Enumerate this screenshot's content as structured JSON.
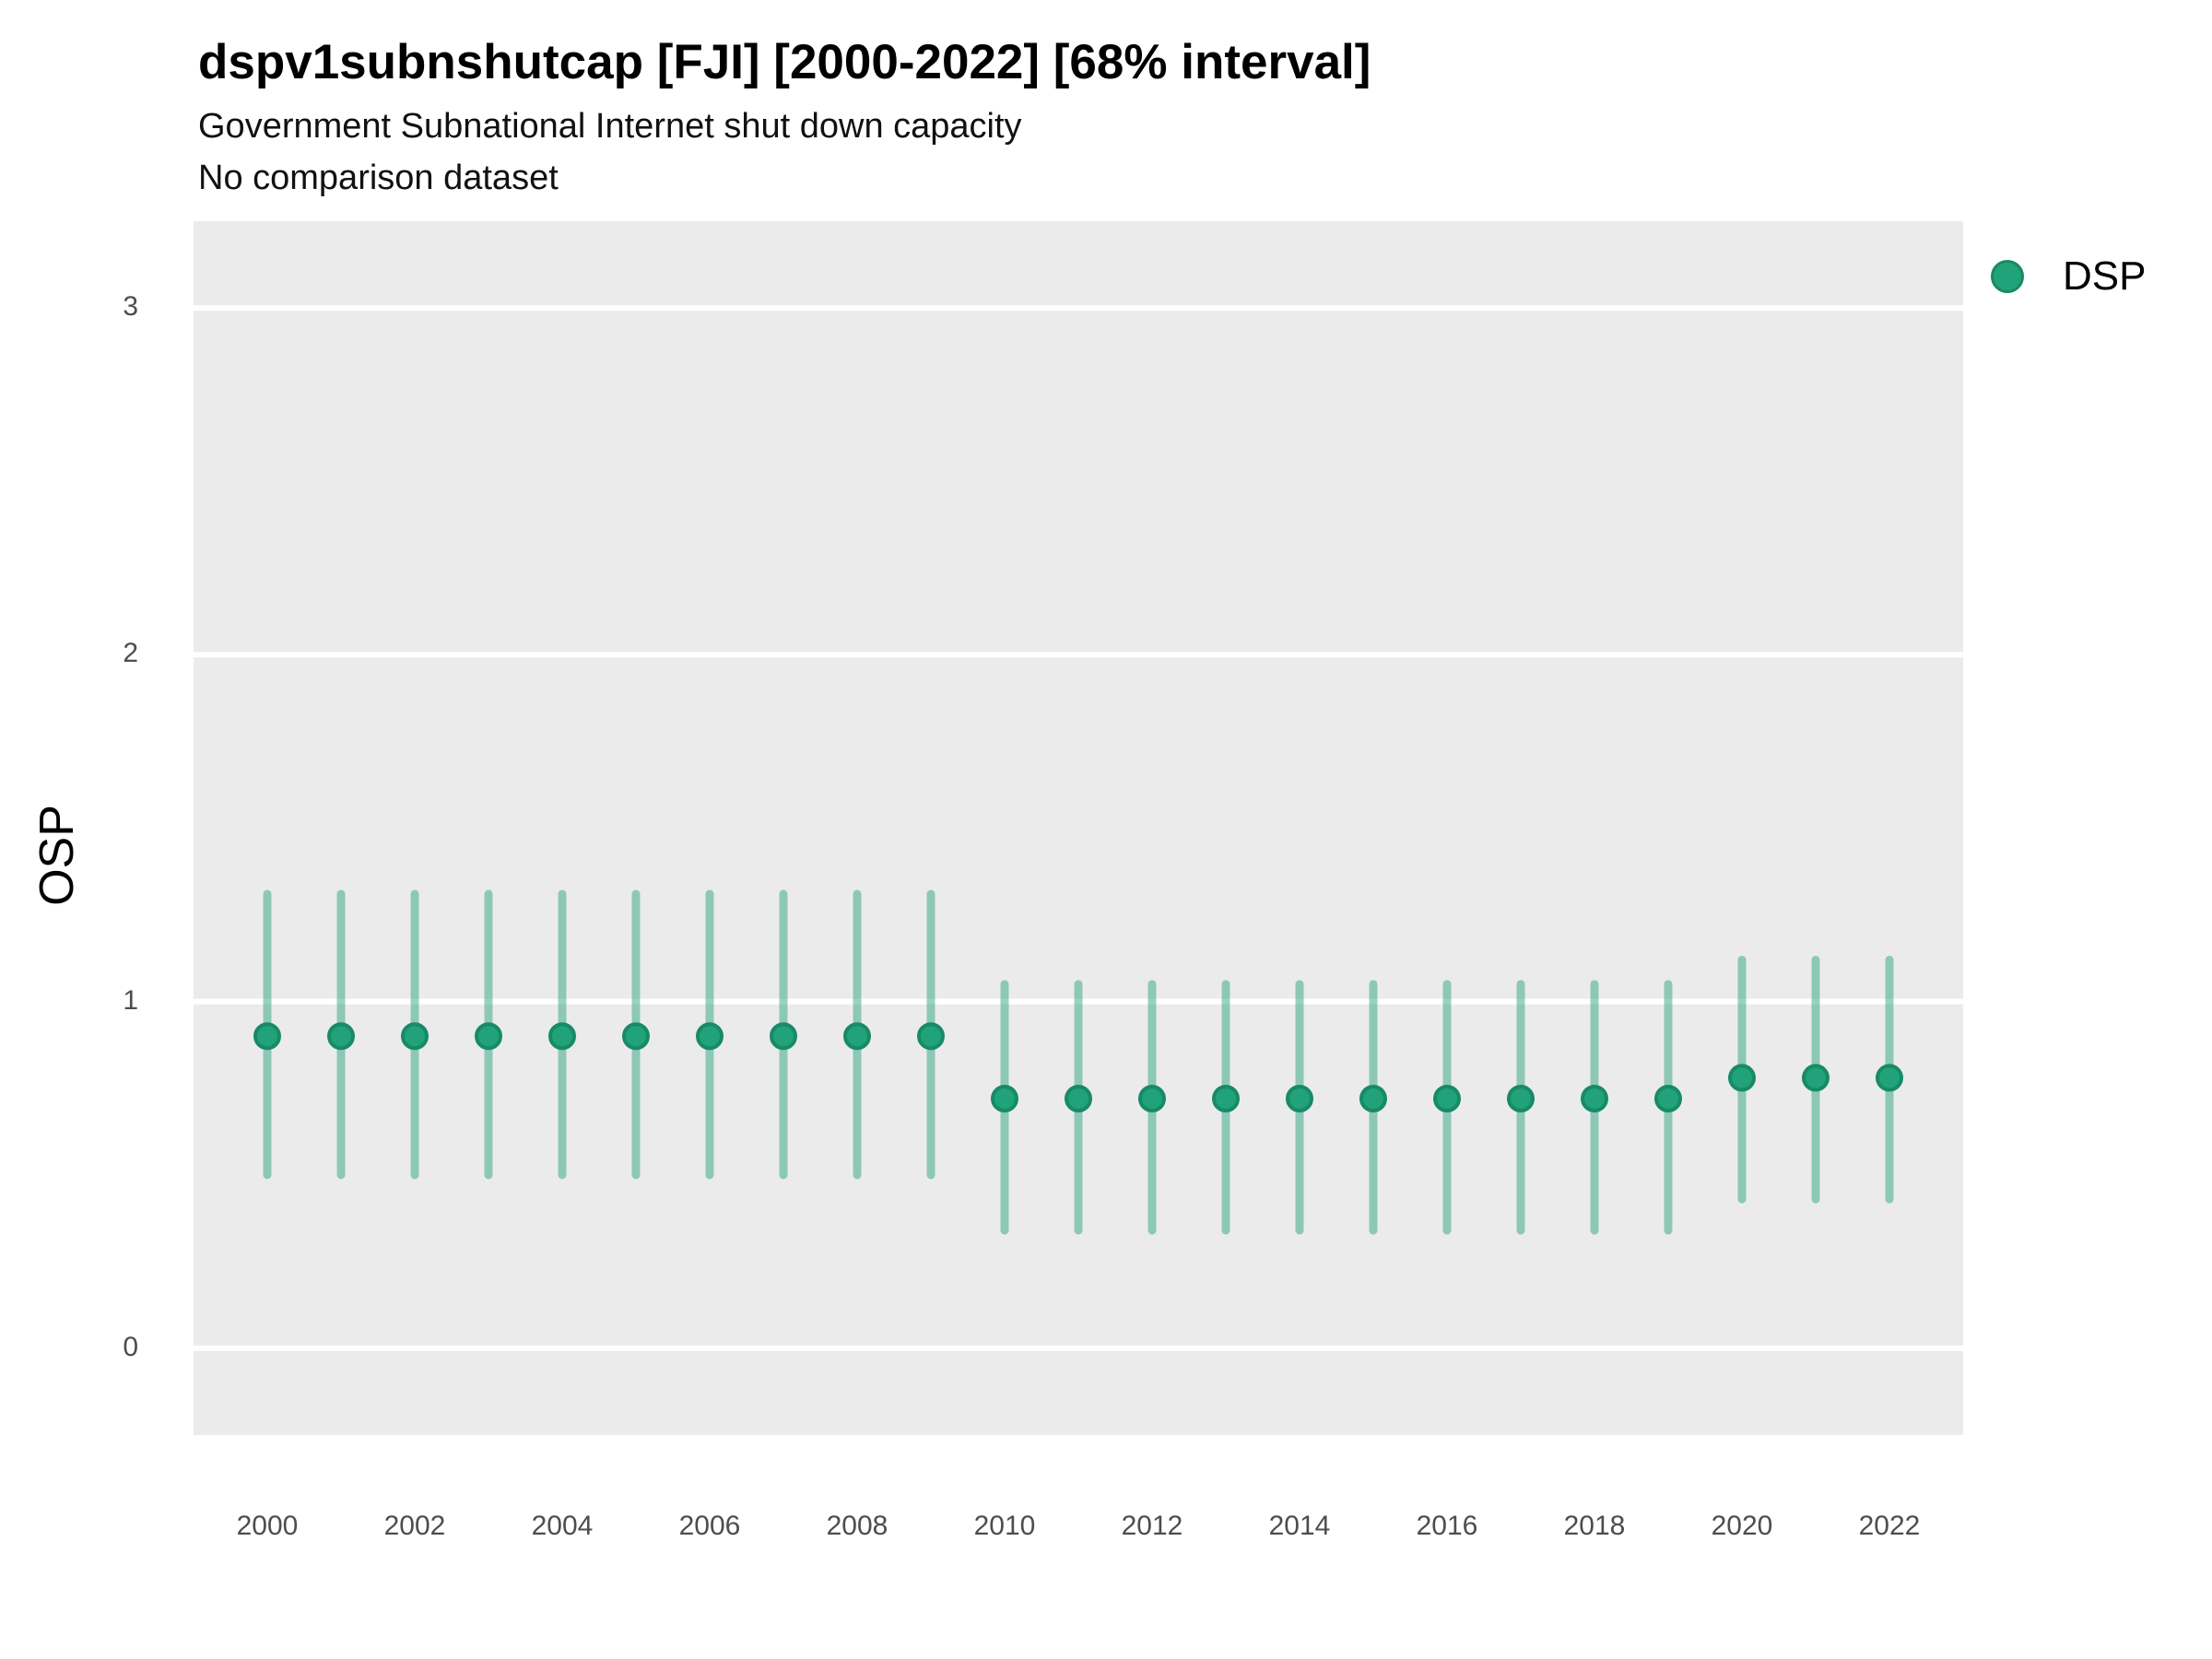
{
  "header": {
    "title": "dspv1subnshutcap [FJI] [2000-2022] [68% interval]",
    "subtitle": "Government Subnational Internet shut down capacity",
    "comparison_note": "No comparison dataset"
  },
  "axes": {
    "y_title": "OSP",
    "x_title": ""
  },
  "legend": {
    "position": "right",
    "items": [
      {
        "label": "DSP",
        "marker": "circle-icon",
        "color": "#22A279"
      }
    ]
  },
  "colors": {
    "panel_background": "#EBEBEB",
    "gridline": "#FFFFFF",
    "interval": "#1B9E77",
    "interval_opacity": 0.45,
    "point_fill": "#22A279",
    "point_stroke": "#178A66",
    "tick_text": "#4D4D4D",
    "text": "#000000"
  },
  "chart_data": {
    "type": "scatter",
    "title": "dspv1subnshutcap [FJI] [2000-2022] [68% interval]",
    "subtitle": "Government Subnational Internet shut down capacity",
    "note": "No comparison dataset",
    "interval_level": "68%",
    "xlabel": "",
    "ylabel": "OSP",
    "legend_entries": [
      "DSP"
    ],
    "legend_position": "right",
    "grid": "major-horizontal-only",
    "xlim": [
      1999,
      2023
    ],
    "ylim": [
      -0.25,
      3.25
    ],
    "x_tick_values": [
      2000,
      2002,
      2004,
      2006,
      2008,
      2010,
      2012,
      2014,
      2016,
      2018,
      2020,
      2022
    ],
    "x_tick_labels": [
      "2000",
      "2002",
      "2004",
      "2006",
      "2008",
      "2010",
      "2012",
      "2014",
      "2016",
      "2018",
      "2020",
      "2022"
    ],
    "y_tick_values": [
      0,
      1,
      2,
      3
    ],
    "y_tick_labels": [
      "0",
      "1",
      "2",
      "3"
    ],
    "series": [
      {
        "name": "DSP",
        "x": [
          2000,
          2001,
          2002,
          2003,
          2004,
          2005,
          2006,
          2007,
          2008,
          2009,
          2010,
          2011,
          2012,
          2013,
          2014,
          2015,
          2016,
          2017,
          2018,
          2019,
          2020,
          2021,
          2022
        ],
        "estimate": [
          0.9,
          0.9,
          0.9,
          0.9,
          0.9,
          0.9,
          0.9,
          0.9,
          0.9,
          0.9,
          0.72,
          0.72,
          0.72,
          0.72,
          0.72,
          0.72,
          0.72,
          0.72,
          0.72,
          0.72,
          0.78,
          0.78,
          0.78
        ],
        "lower": [
          0.5,
          0.5,
          0.5,
          0.5,
          0.5,
          0.5,
          0.5,
          0.5,
          0.5,
          0.5,
          0.34,
          0.34,
          0.34,
          0.34,
          0.34,
          0.34,
          0.34,
          0.34,
          0.34,
          0.34,
          0.43,
          0.43,
          0.43
        ],
        "upper": [
          1.31,
          1.31,
          1.31,
          1.31,
          1.31,
          1.31,
          1.31,
          1.31,
          1.31,
          1.31,
          1.05,
          1.05,
          1.05,
          1.05,
          1.05,
          1.05,
          1.05,
          1.05,
          1.05,
          1.05,
          1.12,
          1.12,
          1.12
        ]
      }
    ]
  }
}
